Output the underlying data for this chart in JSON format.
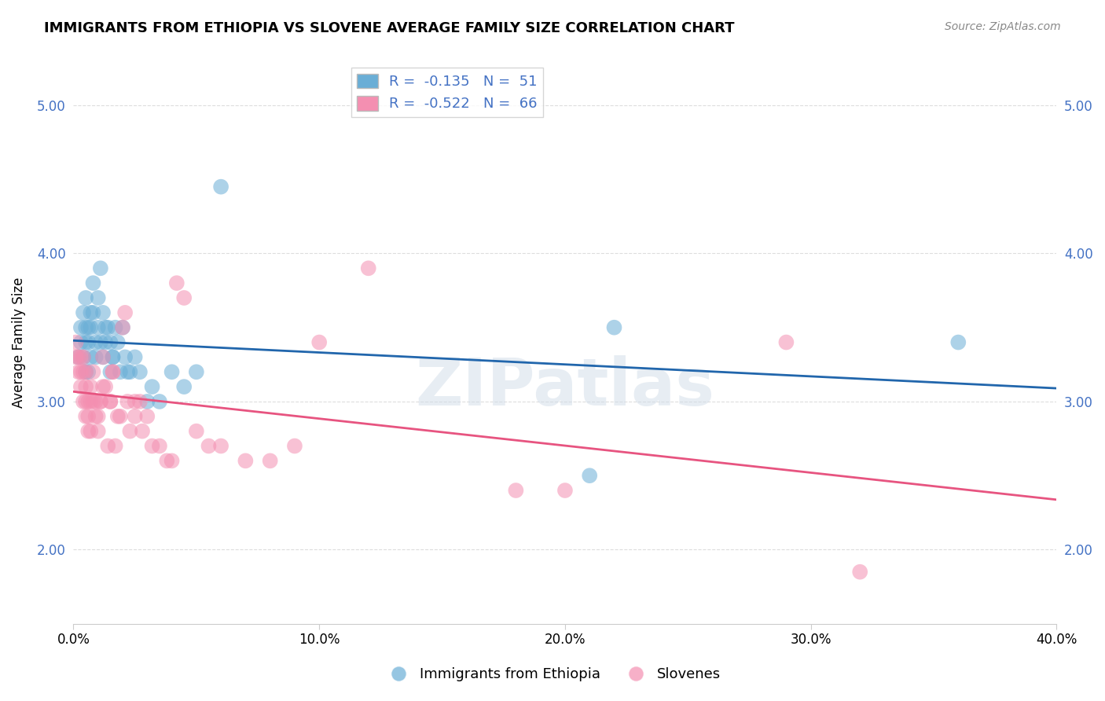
{
  "title": "IMMIGRANTS FROM ETHIOPIA VS SLOVENE AVERAGE FAMILY SIZE CORRELATION CHART",
  "source": "Source: ZipAtlas.com",
  "ylabel": "Average Family Size",
  "xlim": [
    0.0,
    0.4
  ],
  "ylim": [
    1.5,
    5.3
  ],
  "yticks": [
    2.0,
    3.0,
    4.0,
    5.0
  ],
  "xtick_vals": [
    0.0,
    0.1,
    0.2,
    0.3,
    0.4
  ],
  "xtick_labels": [
    "0.0%",
    "10.0%",
    "20.0%",
    "30.0%",
    "40.0%"
  ],
  "blue_R": -0.135,
  "blue_N": 51,
  "pink_R": -0.522,
  "pink_N": 66,
  "blue_color": "#6aaed6",
  "pink_color": "#f48fb1",
  "blue_line_color": "#2166ac",
  "pink_line_color": "#e75480",
  "watermark": "ZIPatlas",
  "legend_label_blue": "Immigrants from Ethiopia",
  "legend_label_pink": "Slovenes",
  "blue_points_x": [
    0.002,
    0.003,
    0.003,
    0.004,
    0.004,
    0.005,
    0.005,
    0.005,
    0.005,
    0.006,
    0.006,
    0.006,
    0.007,
    0.007,
    0.007,
    0.008,
    0.008,
    0.009,
    0.009,
    0.01,
    0.01,
    0.011,
    0.011,
    0.012,
    0.012,
    0.013,
    0.013,
    0.014,
    0.015,
    0.015,
    0.016,
    0.016,
    0.017,
    0.018,
    0.019,
    0.02,
    0.021,
    0.022,
    0.023,
    0.025,
    0.027,
    0.03,
    0.032,
    0.035,
    0.04,
    0.045,
    0.05,
    0.06,
    0.22,
    0.36,
    0.21
  ],
  "blue_points_y": [
    3.3,
    3.4,
    3.5,
    3.6,
    3.3,
    3.2,
    3.4,
    3.5,
    3.7,
    3.2,
    3.4,
    3.5,
    3.6,
    3.3,
    3.5,
    3.8,
    3.6,
    3.4,
    3.3,
    3.5,
    3.7,
    3.9,
    3.4,
    3.6,
    3.3,
    3.5,
    3.4,
    3.5,
    3.2,
    3.4,
    3.3,
    3.3,
    3.5,
    3.4,
    3.2,
    3.5,
    3.3,
    3.2,
    3.2,
    3.3,
    3.2,
    3.0,
    3.1,
    3.0,
    3.2,
    3.1,
    3.2,
    4.45,
    3.5,
    3.4,
    2.5
  ],
  "pink_points_x": [
    0.001,
    0.001,
    0.002,
    0.002,
    0.003,
    0.003,
    0.003,
    0.004,
    0.004,
    0.004,
    0.005,
    0.005,
    0.005,
    0.005,
    0.006,
    0.006,
    0.006,
    0.007,
    0.007,
    0.007,
    0.008,
    0.008,
    0.009,
    0.009,
    0.01,
    0.01,
    0.011,
    0.011,
    0.012,
    0.012,
    0.013,
    0.014,
    0.015,
    0.015,
    0.016,
    0.016,
    0.017,
    0.018,
    0.019,
    0.02,
    0.021,
    0.022,
    0.023,
    0.025,
    0.025,
    0.027,
    0.028,
    0.03,
    0.032,
    0.035,
    0.038,
    0.04,
    0.042,
    0.045,
    0.05,
    0.055,
    0.06,
    0.07,
    0.08,
    0.09,
    0.1,
    0.12,
    0.18,
    0.2,
    0.29,
    0.32
  ],
  "pink_points_y": [
    3.3,
    3.4,
    3.2,
    3.3,
    3.1,
    3.2,
    3.3,
    3.0,
    3.2,
    3.3,
    2.9,
    3.0,
    3.1,
    3.2,
    2.8,
    2.9,
    3.0,
    2.8,
    3.0,
    3.1,
    3.2,
    3.0,
    2.9,
    3.0,
    2.8,
    2.9,
    3.0,
    3.0,
    3.1,
    3.3,
    3.1,
    2.7,
    3.0,
    3.0,
    3.2,
    3.2,
    2.7,
    2.9,
    2.9,
    3.5,
    3.6,
    3.0,
    2.8,
    2.9,
    3.0,
    3.0,
    2.8,
    2.9,
    2.7,
    2.7,
    2.6,
    2.6,
    3.8,
    3.7,
    2.8,
    2.7,
    2.7,
    2.6,
    2.6,
    2.7,
    3.4,
    3.9,
    2.4,
    2.4,
    3.4,
    1.85
  ]
}
